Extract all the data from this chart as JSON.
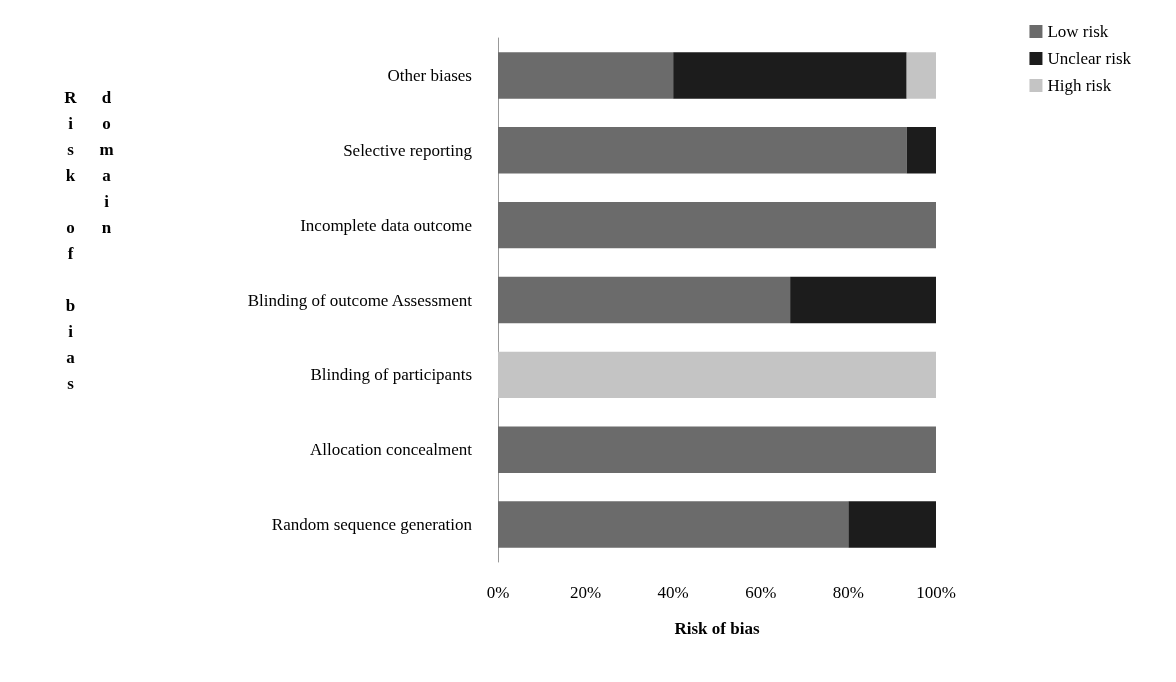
{
  "chart_data": {
    "type": "bar",
    "orientation": "horizontal",
    "stacked": true,
    "xlabel": "Risk of bias",
    "annotations": [
      "Risk of bias domain"
    ],
    "categories": [
      "Other biases",
      "Selective reporting",
      "Incomplete data outcome",
      "Blinding of outcome Assessment",
      "Blinding of participants",
      "Allocation concealment",
      "Random sequence generation"
    ],
    "series": [
      {
        "name": "Low risk",
        "color": "#6b6b6b",
        "values": [
          40,
          93.3,
          100,
          66.7,
          0,
          100,
          80
        ]
      },
      {
        "name": "Unclear risk",
        "color": "#1c1c1c",
        "values": [
          53.3,
          6.7,
          0,
          33.3,
          0,
          0,
          20
        ]
      },
      {
        "name": "High risk",
        "color": "#c4c4c4",
        "values": [
          6.7,
          0,
          0,
          0,
          100,
          0,
          0
        ]
      }
    ],
    "xlim": [
      0,
      100
    ],
    "xticks": [
      {
        "value": 0,
        "label": "0%"
      },
      {
        "value": 20,
        "label": "20%"
      },
      {
        "value": 40,
        "label": "40%"
      },
      {
        "value": 60,
        "label": "60%"
      },
      {
        "value": 80,
        "label": "80%"
      },
      {
        "value": 100,
        "label": "100%"
      }
    ],
    "grid": false,
    "legend": "top right"
  }
}
